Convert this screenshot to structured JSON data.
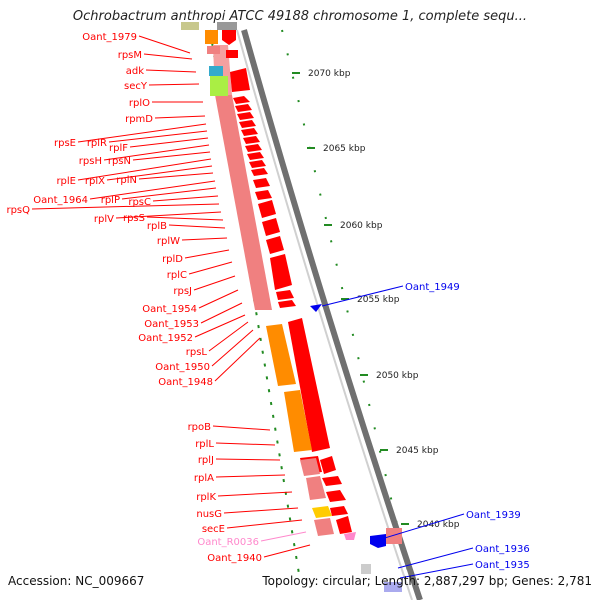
{
  "title": "Ochrobactrum anthropi ATCC 49188 chromosome 1, complete sequ...",
  "accession": "Accession: NC_009667",
  "summary": "Topology: circular; Length: 2,887,297 bp; Genes: 2,781",
  "colors": {
    "forward_gene": "#ff0000",
    "reverse_gene": "#0000ee",
    "rna_gene": "#ff88cc",
    "cds_band": "#f08080",
    "rrna_band": "#ff8c00",
    "ribosomal_tick": "#228B22",
    "backbone": "#808080"
  },
  "kbp_ticks": [
    "2070 kbp",
    "2065 kbp",
    "2060 kbp",
    "2055 kbp",
    "2050 kbp",
    "2045 kbp",
    "2040 kbp"
  ],
  "left_genes": [
    {
      "name": "Oant_1979"
    },
    {
      "name": "rpsM"
    },
    {
      "name": "adk"
    },
    {
      "name": "secY"
    },
    {
      "name": "rplO"
    },
    {
      "name": "rpmD"
    },
    {
      "name": "rpsE"
    },
    {
      "name": "rplR"
    },
    {
      "name": "rplF"
    },
    {
      "name": "rpsH"
    },
    {
      "name": "rpsN"
    },
    {
      "name": "rplE"
    },
    {
      "name": "rplX"
    },
    {
      "name": "rplN"
    },
    {
      "name": "Oant_1964"
    },
    {
      "name": "rplP"
    },
    {
      "name": "rpsC"
    },
    {
      "name": "rpsQ"
    },
    {
      "name": "rplV"
    },
    {
      "name": "rpsS"
    },
    {
      "name": "rplB"
    },
    {
      "name": "rplW"
    },
    {
      "name": "rplD"
    },
    {
      "name": "rplC"
    },
    {
      "name": "rpsJ"
    },
    {
      "name": "Oant_1954"
    },
    {
      "name": "Oant_1953"
    },
    {
      "name": "Oant_1952"
    },
    {
      "name": "rpsL"
    },
    {
      "name": "Oant_1950"
    },
    {
      "name": "Oant_1948"
    },
    {
      "name": "rpoB"
    },
    {
      "name": "rplL"
    },
    {
      "name": "rplJ"
    },
    {
      "name": "rplA"
    },
    {
      "name": "rplK"
    },
    {
      "name": "nusG"
    },
    {
      "name": "secE"
    },
    {
      "name": "Oant_R0036"
    },
    {
      "name": "Oant_1940"
    }
  ],
  "right_genes": [
    {
      "name": "Oant_1949"
    },
    {
      "name": "Oant_1939"
    },
    {
      "name": "Oant_1936"
    },
    {
      "name": "Oant_1935"
    }
  ]
}
